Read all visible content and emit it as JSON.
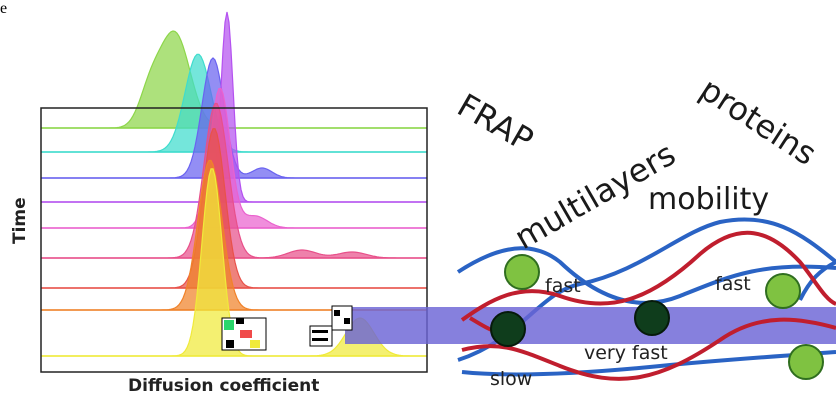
{
  "header_fragment": "e",
  "plot": {
    "y_label": "Time",
    "x_label": "Diffusion coefficient",
    "curve_colors": [
      "#8dd64a",
      "#3fdccd",
      "#6a63f0",
      "#b452f0",
      "#ea62ce",
      "#e8508a",
      "#e8524a",
      "#f0822a",
      "#f0ea3a"
    ],
    "frame_color": "#222222"
  },
  "keywords": {
    "frap": "FRAP",
    "proteins": "proteins",
    "multilayers": "multilayers",
    "mobility": "mobility"
  },
  "scheme": {
    "labels": {
      "fast_1": "fast",
      "fast_2": "fast",
      "very_fast": "very fast",
      "slow": "slow"
    },
    "colors": {
      "band": "#6b64d6",
      "blue_line": "#2a63c4",
      "red_line": "#c01e2e",
      "green_particle": "#7fc241",
      "dark_particle": "#0f3d1c"
    }
  }
}
